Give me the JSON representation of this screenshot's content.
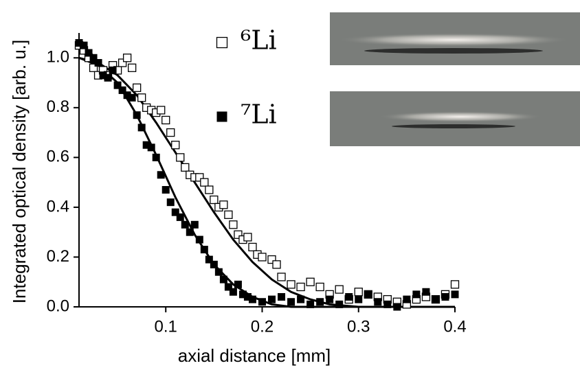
{
  "chart_data": {
    "type": "scatter",
    "x_label": "axial distance [mm]",
    "y_label": "Integrated optical density [arb. u.]",
    "xlim": [
      0.01,
      0.4
    ],
    "ylim": [
      0,
      1.1
    ],
    "xticks": [
      0.1,
      0.2,
      0.3,
      0.4
    ],
    "yticks": [
      {
        "value": 0,
        "label": "0.0"
      },
      0.2,
      0.4,
      0.6,
      0.8,
      {
        "value": 1,
        "label": "1.0"
      }
    ],
    "series": [
      {
        "name": "⁶Li",
        "color": "#000000",
        "marker": "open",
        "x": [
          0.01,
          0.015,
          0.02,
          0.025,
          0.03,
          0.035,
          0.04,
          0.045,
          0.05,
          0.055,
          0.06,
          0.065,
          0.07,
          0.075,
          0.08,
          0.085,
          0.09,
          0.095,
          0.1,
          0.105,
          0.11,
          0.115,
          0.12,
          0.125,
          0.13,
          0.135,
          0.14,
          0.145,
          0.15,
          0.155,
          0.16,
          0.165,
          0.17,
          0.175,
          0.18,
          0.185,
          0.19,
          0.195,
          0.2,
          0.21,
          0.215,
          0.22,
          0.23,
          0.24,
          0.25,
          0.26,
          0.27,
          0.28,
          0.29,
          0.3,
          0.31,
          0.32,
          0.33,
          0.34,
          0.35,
          0.36,
          0.37,
          0.38,
          0.39,
          0.4
        ],
        "values": [
          1.05,
          1.03,
          1.0,
          0.96,
          0.93,
          0.95,
          0.93,
          0.97,
          0.95,
          0.98,
          1.0,
          0.96,
          0.88,
          0.84,
          0.8,
          0.79,
          0.78,
          0.79,
          0.75,
          0.7,
          0.65,
          0.6,
          0.56,
          0.53,
          0.52,
          0.52,
          0.5,
          0.47,
          0.43,
          0.4,
          0.41,
          0.37,
          0.33,
          0.29,
          0.27,
          0.28,
          0.24,
          0.21,
          0.2,
          0.19,
          0.17,
          0.12,
          0.09,
          0.08,
          0.1,
          0.08,
          0.05,
          0.07,
          0.03,
          0.06,
          0.05,
          0.04,
          0.03,
          0.02,
          0.01,
          0.03,
          0.04,
          0.03,
          0.05,
          0.09
        ]
      },
      {
        "name": "⁷Li",
        "color": "#000000",
        "marker": "filled",
        "x": [
          0.01,
          0.015,
          0.02,
          0.025,
          0.03,
          0.035,
          0.04,
          0.045,
          0.05,
          0.055,
          0.06,
          0.065,
          0.07,
          0.075,
          0.08,
          0.085,
          0.09,
          0.095,
          0.1,
          0.105,
          0.11,
          0.115,
          0.12,
          0.125,
          0.13,
          0.135,
          0.14,
          0.145,
          0.15,
          0.155,
          0.16,
          0.165,
          0.17,
          0.175,
          0.18,
          0.185,
          0.19,
          0.2,
          0.21,
          0.22,
          0.23,
          0.24,
          0.25,
          0.26,
          0.27,
          0.28,
          0.29,
          0.3,
          0.31,
          0.32,
          0.33,
          0.34,
          0.35,
          0.36,
          0.37,
          0.38,
          0.39,
          0.4
        ],
        "values": [
          1.06,
          1.05,
          1.02,
          1.0,
          0.98,
          0.93,
          0.92,
          0.95,
          0.89,
          0.87,
          0.85,
          0.84,
          0.77,
          0.72,
          0.65,
          0.64,
          0.6,
          0.53,
          0.47,
          0.42,
          0.38,
          0.36,
          0.33,
          0.3,
          0.33,
          0.27,
          0.23,
          0.19,
          0.17,
          0.14,
          0.11,
          0.08,
          0.06,
          0.09,
          0.05,
          0.04,
          0.03,
          0.02,
          0.03,
          0.04,
          0.02,
          0.03,
          0.01,
          0.02,
          0.03,
          0.01,
          0.04,
          0.03,
          0.05,
          0.02,
          0.01,
          0.0,
          0.03,
          0.05,
          0.06,
          0.03,
          0.04,
          0.05
        ]
      }
    ],
    "fits": [
      {
        "color": "#000000",
        "x": [
          0.01,
          0.03,
          0.05,
          0.07,
          0.09,
          0.11,
          0.13,
          0.15,
          0.17,
          0.19,
          0.21,
          0.23,
          0.25,
          0.27,
          0.3,
          0.4
        ],
        "values": [
          1.0,
          0.98,
          0.93,
          0.85,
          0.74,
          0.62,
          0.5,
          0.38,
          0.27,
          0.18,
          0.11,
          0.06,
          0.03,
          0.01,
          0.0,
          0.0
        ]
      },
      {
        "color": "#000000",
        "x": [
          0.01,
          0.03,
          0.05,
          0.07,
          0.09,
          0.11,
          0.13,
          0.15,
          0.17,
          0.19,
          0.21,
          0.23,
          0.4
        ],
        "values": [
          1.0,
          0.97,
          0.9,
          0.77,
          0.61,
          0.44,
          0.29,
          0.17,
          0.09,
          0.04,
          0.01,
          0.0,
          0.0
        ]
      }
    ]
  }
}
